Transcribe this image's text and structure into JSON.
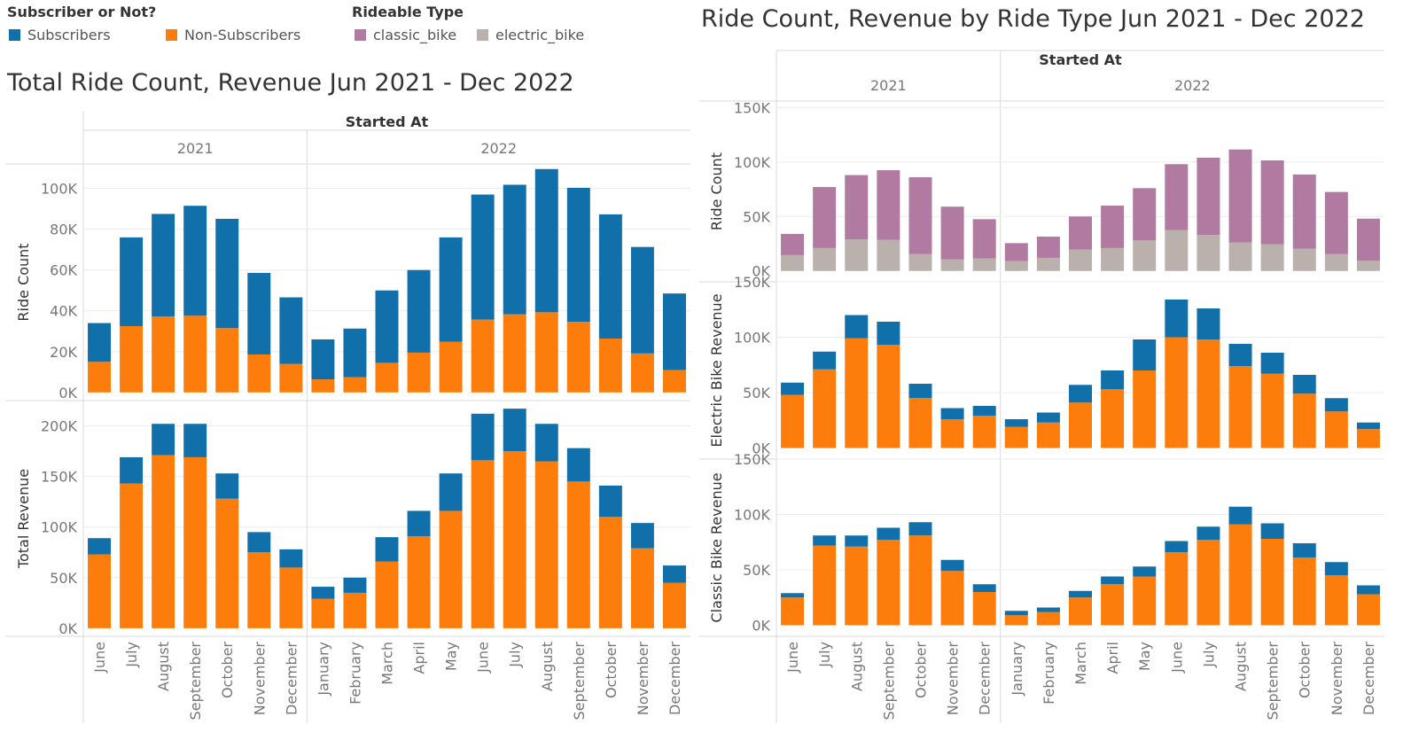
{
  "legends": {
    "subscriber": {
      "title": "Subscriber or Not?",
      "items": [
        {
          "label": "Subscribers",
          "color": "#1170aa"
        },
        {
          "label": "Non-Subscribers",
          "color": "#fc7d0b"
        }
      ]
    },
    "rideable": {
      "title": "Rideable Type",
      "items": [
        {
          "label": "classic_bike",
          "color": "#b07aa1"
        },
        {
          "label": "electric_bike",
          "color": "#bab0ac"
        }
      ]
    }
  },
  "titles": {
    "left": "Total Ride Count, Revenue Jun 2021 - Dec 2022",
    "right": "Ride Count, Revenue by Ride Type  Jun 2021 - Dec 2022"
  },
  "chart_data": [
    {
      "type": "bar",
      "stacked": true,
      "title": "Total Ride Count, Revenue Jun 2021 - Dec 2022",
      "column_header": "Started At",
      "year_groups": [
        {
          "year": "2021",
          "months": [
            "June",
            "July",
            "August",
            "September",
            "October",
            "November",
            "December"
          ]
        },
        {
          "year": "2022",
          "months": [
            "January",
            "February",
            "March",
            "April",
            "May",
            "June",
            "July",
            "August",
            "September",
            "October",
            "November",
            "December"
          ]
        }
      ],
      "series_names": [
        "Non-Subscribers",
        "Subscribers"
      ],
      "series_colors": [
        "#fc7d0b",
        "#1170aa"
      ],
      "panels": [
        {
          "ylabel": "Ride Count",
          "ylim": [
            -4000,
            112000
          ],
          "ticks": [
            {
              "v": 0,
              "label": "0K"
            },
            {
              "v": 20000,
              "label": "20K"
            },
            {
              "v": 40000,
              "label": "40K"
            },
            {
              "v": 60000,
              "label": "60K"
            },
            {
              "v": 80000,
              "label": "80K"
            },
            {
              "v": 100000,
              "label": "100K"
            }
          ],
          "non_subscribers": [
            15000,
            32500,
            37200,
            37600,
            31500,
            18600,
            14000,
            6400,
            7500,
            14500,
            19500,
            24800,
            35700,
            38300,
            39300,
            34600,
            26400,
            19100,
            11000
          ],
          "subscribers": [
            19000,
            43500,
            50300,
            53900,
            53600,
            40000,
            32600,
            19600,
            23800,
            35500,
            40500,
            51200,
            61300,
            63500,
            70200,
            65700,
            60900,
            52200,
            37500
          ]
        },
        {
          "ylabel": "Total Revenue",
          "ylim": [
            -8000,
            225000
          ],
          "ticks": [
            {
              "v": 0,
              "label": "0K"
            },
            {
              "v": 50000,
              "label": "50K"
            },
            {
              "v": 100000,
              "label": "100K"
            },
            {
              "v": 150000,
              "label": "150K"
            },
            {
              "v": 200000,
              "label": "200K"
            }
          ],
          "non_subscribers": [
            73000,
            143000,
            171000,
            169000,
            128000,
            75000,
            60000,
            29000,
            35000,
            66000,
            91000,
            116000,
            166000,
            175000,
            165000,
            145000,
            110000,
            79000,
            45000
          ],
          "subscribers": [
            16000,
            26000,
            31000,
            33000,
            25000,
            20000,
            18000,
            12000,
            15000,
            24000,
            25000,
            37000,
            46000,
            42000,
            37000,
            33000,
            31000,
            25000,
            17000
          ]
        }
      ]
    },
    {
      "type": "bar",
      "stacked": true,
      "title": "Ride Count, Revenue by Ride Type  Jun 2021 - Dec 2022",
      "column_header": "Started At",
      "year_groups": [
        {
          "year": "2021",
          "months": [
            "June",
            "July",
            "August",
            "September",
            "October",
            "November",
            "December"
          ]
        },
        {
          "year": "2022",
          "months": [
            "January",
            "February",
            "March",
            "April",
            "May",
            "June",
            "July",
            "August",
            "September",
            "October",
            "November",
            "December"
          ]
        }
      ],
      "panels": [
        {
          "ylabel": "Ride Count",
          "ylim": [
            -10000,
            156000
          ],
          "ticks": [
            {
              "v": 0,
              "label": "0K"
            },
            {
              "v": 50000,
              "label": "50K"
            },
            {
              "v": 100000,
              "label": "100K"
            },
            {
              "v": 150000,
              "label": "150K"
            }
          ],
          "series": [
            {
              "name": "electric_bike",
              "color": "#bab0ac",
              "values": [
                14500,
                21000,
                29000,
                28500,
                15500,
                10500,
                11500,
                9000,
                12000,
                19500,
                21000,
                28000,
                37500,
                33000,
                26000,
                24500,
                20500,
                15500,
                9500
              ]
            },
            {
              "name": "classic_bike",
              "color": "#b07aa1",
              "values": [
                19500,
                56000,
                59000,
                64000,
                70500,
                48500,
                36000,
                16500,
                19500,
                30500,
                39000,
                48000,
                60500,
                71000,
                85500,
                77000,
                68000,
                57000,
                38500
              ]
            }
          ]
        },
        {
          "ylabel": "Electric Bike Revenue",
          "ylim": [
            -10000,
            150000
          ],
          "ticks": [
            {
              "v": 0,
              "label": "0K"
            },
            {
              "v": 50000,
              "label": "50K"
            },
            {
              "v": 100000,
              "label": "100K"
            },
            {
              "v": 150000,
              "label": "150K"
            }
          ],
          "series": [
            {
              "name": "Non-Subscribers",
              "color": "#fc7d0b",
              "values": [
                48000,
                71000,
                99000,
                93000,
                45000,
                26000,
                29000,
                19000,
                23000,
                41000,
                53000,
                70000,
                100000,
                98000,
                74000,
                67000,
                49000,
                33000,
                17000
              ]
            },
            {
              "name": "Subscribers",
              "color": "#1170aa",
              "values": [
                11000,
                16000,
                21000,
                21000,
                13000,
                10000,
                9000,
                7000,
                9000,
                16000,
                17000,
                28000,
                34000,
                28000,
                20000,
                19000,
                17000,
                12000,
                6000
              ]
            }
          ]
        },
        {
          "ylabel": "Classic Bike Revenue",
          "ylim": [
            -10000,
            150000
          ],
          "ticks": [
            {
              "v": 0,
              "label": "0K"
            },
            {
              "v": 50000,
              "label": "50K"
            },
            {
              "v": 100000,
              "label": "100K"
            },
            {
              "v": 150000,
              "label": "150K"
            }
          ],
          "series": [
            {
              "name": "Non-Subscribers",
              "color": "#fc7d0b",
              "values": [
                25000,
                72000,
                71000,
                77000,
                81000,
                49000,
                30000,
                9000,
                12000,
                25000,
                37000,
                44000,
                66000,
                77000,
                91000,
                78000,
                61000,
                45000,
                28000
              ]
            },
            {
              "name": "Subscribers",
              "color": "#1170aa",
              "values": [
                4000,
                9000,
                10000,
                11000,
                12000,
                10000,
                7000,
                4000,
                4000,
                6000,
                7000,
                9000,
                10000,
                12000,
                16000,
                14000,
                13000,
                12000,
                8000
              ]
            }
          ]
        }
      ]
    }
  ]
}
